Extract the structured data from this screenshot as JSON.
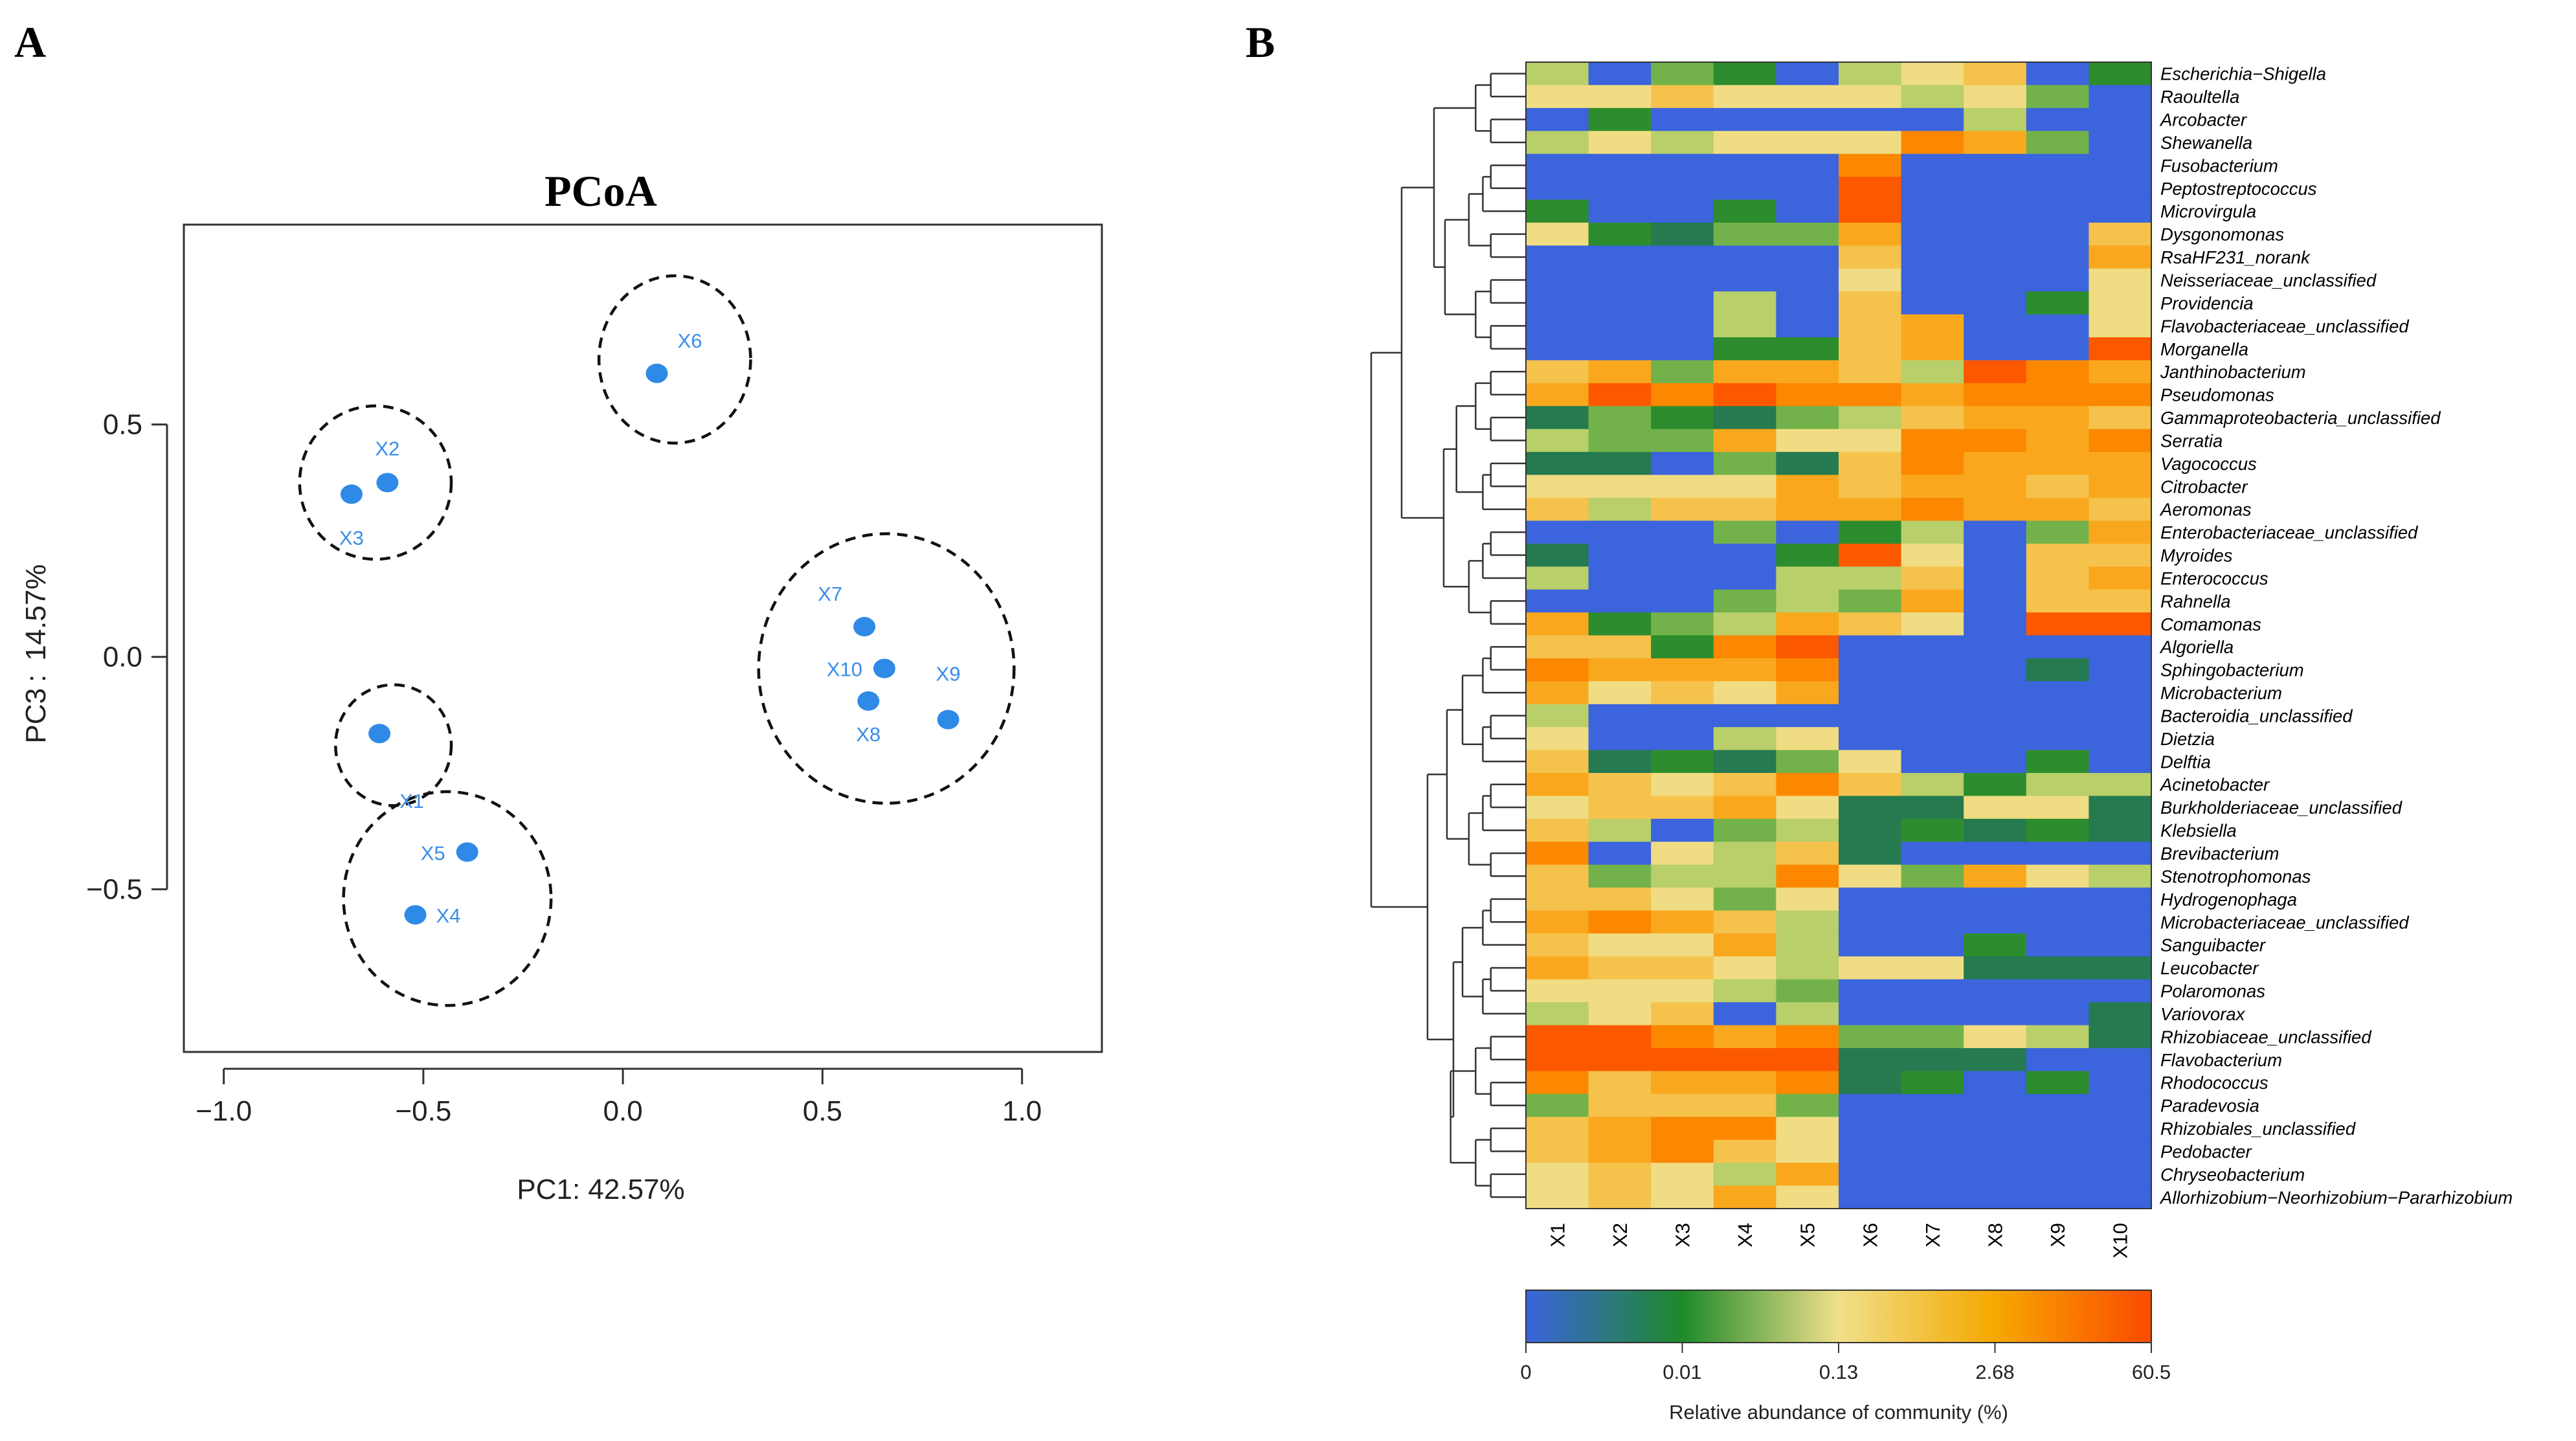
{
  "panel_labels": {
    "a": "A",
    "b": "B"
  },
  "chart_data": [
    {
      "type": "scatter",
      "title": "PCoA",
      "xlabel": "PC1: 42.57%",
      "ylabel": "PC3 :  14.57%",
      "xlim": [
        -1.1,
        1.2
      ],
      "ylim": [
        -0.85,
        0.93
      ],
      "xticks": [
        "−1.0",
        "−0.5",
        "0.0",
        "0.5",
        "1.0"
      ],
      "yticks": [
        "0.5",
        "0.0",
        "−0.5"
      ],
      "xtick_values": [
        -1.0,
        -0.5,
        0.0,
        0.5,
        1.0
      ],
      "ytick_values": [
        0.5,
        0.0,
        -0.5
      ],
      "point_color": "#2e8ae6",
      "label_color": "#3a8ee8",
      "points": [
        {
          "label": "X1",
          "x": -0.61,
          "y": -0.165
        },
        {
          "label": "X2",
          "x": -0.59,
          "y": 0.375
        },
        {
          "label": "X3",
          "x": -0.68,
          "y": 0.35
        },
        {
          "label": "X4",
          "x": -0.52,
          "y": -0.555
        },
        {
          "label": "X5",
          "x": -0.39,
          "y": -0.42
        },
        {
          "label": "X6",
          "x": 0.085,
          "y": 0.61
        },
        {
          "label": "X7",
          "x": 0.605,
          "y": 0.065
        },
        {
          "label": "X8",
          "x": 0.615,
          "y": -0.095
        },
        {
          "label": "X9",
          "x": 0.815,
          "y": -0.135
        },
        {
          "label": "X10",
          "x": 0.655,
          "y": -0.025
        }
      ],
      "groups": [
        {
          "members": [
            "X2",
            "X3"
          ],
          "center": [
            -0.62,
            0.375
          ],
          "radius": [
            0.19,
            0.165
          ]
        },
        {
          "members": [
            "X6"
          ],
          "center": [
            0.13,
            0.64
          ],
          "radius": [
            0.19,
            0.18
          ]
        },
        {
          "members": [
            "X7",
            "X8",
            "X9",
            "X10"
          ],
          "center": [
            0.66,
            -0.025
          ],
          "radius": [
            0.32,
            0.29
          ]
        },
        {
          "members": [
            "X1"
          ],
          "center": [
            -0.575,
            -0.19
          ],
          "radius": [
            0.145,
            0.13
          ]
        },
        {
          "members": [
            "X4",
            "X5"
          ],
          "center": [
            -0.44,
            -0.52
          ],
          "radius": [
            0.26,
            0.23
          ]
        }
      ]
    },
    {
      "type": "heatmap",
      "columns": [
        "X1",
        "X2",
        "X3",
        "X4",
        "X5",
        "X6",
        "X7",
        "X8",
        "X9",
        "X10"
      ],
      "rows": [
        "Escherichia−Shigella",
        "Raoultella",
        "Arcobacter",
        "Shewanella",
        "Fusobacterium",
        "Peptostreptococcus",
        "Microvirgula",
        "Dysgonomonas",
        "RsaHF231_norank",
        "Neisseriaceae_unclassified",
        "Providencia",
        "Flavobacteriaceae_unclassified",
        "Morganella",
        "Janthinobacterium",
        "Pseudomonas",
        "Gammaproteobacteria_unclassified",
        "Serratia",
        "Vagococcus",
        "Citrobacter",
        "Aeromonas",
        "Enterobacteriaceae_unclassified",
        "Myroides",
        "Enterococcus",
        "Rahnella",
        "Comamonas",
        "Algoriella",
        "Sphingobacterium",
        "Microbacterium",
        "Bacteroidia_unclassified",
        "Dietzia",
        "Delftia",
        "Acinetobacter",
        "Burkholderiaceae_unclassified",
        "Klebsiella",
        "Brevibacterium",
        "Stenotrophomonas",
        "Hydrogenophaga",
        "Microbacteriaceae_unclassified",
        "Sanguibacter",
        "Leucobacter",
        "Polaromonas",
        "Variovorax",
        "Rhizobiaceae_unclassified",
        "Flavobacterium",
        "Rhodococcus",
        "Paradevosia",
        "Rhizobiales_unclassified",
        "Pedobacter",
        "Chryseobacterium",
        "Allorhizobium−Neorhizobium−Pararhizobium"
      ],
      "color_scale": {
        "label": "Relative abundance of community (%)",
        "tick_labels": [
          "0",
          "0.01",
          "0.13",
          "2.68",
          "60.5"
        ],
        "colors": [
          "#3b64dd",
          "#1e8a2a",
          "#f0e08a",
          "#f5a800",
          "#fc4a00"
        ]
      },
      "level_colors": [
        "#3b64dd",
        "#257a50",
        "#2d8c2d",
        "#73b24a",
        "#b8cf6a",
        "#f0dc82",
        "#f5c24c",
        "#f9a81e",
        "#fb8800",
        "#fc5800"
      ],
      "matrix": [
        "4032045602",
        "5565554530",
        "0200000400",
        "4545558730",
        "0000080000",
        "0000090000",
        "2002090000",
        "5213370006",
        "0000060007",
        "0000050005",
        "0004060025",
        "0004067005",
        "0002267009",
        "6737764987",
        "7989887888",
        "1321346776",
        "4337558878",
        "1103168777",
        "5555767767",
        "6466778776",
        "0003024037",
        "1000295066",
        "4000446067",
        "0003437066",
        "7234765099",
        "6628900000",
        "8777800010",
        "7565700000",
        "4000000000",
        "5004500000",
        "6121350020",
        "7656864244",
        "5667511551",
        "6403412121",
        "8054610000",
        "6344853754",
        "6653500000",
        "7876400000",
        "6557400200",
        "7665455111",
        "5554300000",
        "4560400001",
        "9987833541",
        "9999911100",
        "8677812020",
        "3666300000",
        "6788500000",
        "6786500000",
        "5654700000",
        "5657500000"
      ]
    }
  ]
}
